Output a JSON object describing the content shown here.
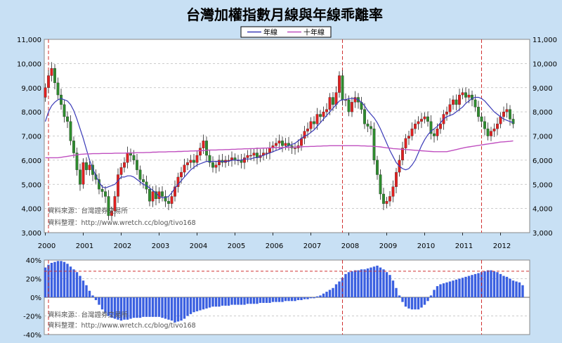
{
  "chart_data": [
    {
      "type": "candlestick",
      "title": "台灣加權指數月線與年線乖離率",
      "legend": [
        {
          "name": "年線",
          "color": "#3a3ab8"
        },
        {
          "name": "十年線",
          "color": "#c050c0"
        }
      ],
      "ylim": [
        3000,
        11000
      ],
      "yticks": [
        "3,000",
        "4,000",
        "5,000",
        "6,000",
        "7,000",
        "8,000",
        "9,000",
        "10,000",
        "11,000"
      ],
      "xticks": [
        "2000",
        "2001",
        "2002",
        "2003",
        "2004",
        "2005",
        "2006",
        "2007",
        "2008",
        "2009",
        "2010",
        "2011",
        "2012"
      ],
      "notes": [
        "資料來源：台灣證券交易所",
        "資料整理：http://www.wretch.cc/blog/tivo168"
      ],
      "monthly_close": [
        9000,
        9500,
        9800,
        9200,
        8700,
        8300,
        7800,
        7600,
        6800,
        6300,
        5600,
        5000,
        5900,
        5600,
        5800,
        5400,
        5200,
        4800,
        4700,
        4500,
        3700,
        3900,
        4500,
        5400,
        5700,
        5900,
        6300,
        6200,
        6000,
        5600,
        5200,
        5100,
        4800,
        4300,
        4700,
        4400,
        4700,
        4500,
        4300,
        4200,
        4500,
        4900,
        5300,
        5500,
        5800,
        5900,
        6000,
        5900,
        6200,
        6500,
        6800,
        6200,
        5900,
        5700,
        5800,
        6000,
        5900,
        6000,
        6000,
        6100,
        6000,
        6000,
        5900,
        6100,
        6200,
        6200,
        6300,
        6100,
        6200,
        6300,
        6300,
        6500,
        6600,
        6700,
        6800,
        6600,
        6700,
        6600,
        6500,
        6500,
        6600,
        6900,
        7200,
        7300,
        7600,
        7500,
        7900,
        7800,
        8000,
        8100,
        8600,
        8300,
        8800,
        9500,
        8500,
        8500,
        8000,
        8400,
        8600,
        8400,
        8100,
        7500,
        7400,
        7300,
        6000,
        5400,
        4600,
        4200,
        4300,
        4500,
        4900,
        5500,
        6000,
        6500,
        6900,
        7000,
        7300,
        7500,
        7600,
        7700,
        7800,
        7600,
        7100,
        7000,
        7300,
        7500,
        7900,
        8000,
        8300,
        8500,
        8300,
        8700,
        8800,
        8600,
        8700,
        8500,
        8200,
        7800,
        7600,
        7300,
        7000,
        7200,
        7300,
        7500,
        7800,
        8000,
        8100,
        7700,
        7500
      ],
      "ma12": [
        7600,
        8000,
        8250,
        8400,
        8500,
        8550,
        8500,
        8450,
        8300,
        8050,
        7700,
        7300,
        6900,
        6450,
        6000,
        5650,
        5350,
        5100,
        4900,
        4850,
        4900,
        4950,
        5000,
        5150,
        5300,
        5300,
        5350,
        5350,
        5300,
        5200,
        5100,
        5000,
        4950,
        4850,
        4750,
        4650,
        4500,
        4450,
        4450,
        4500,
        4650,
        4850,
        5000,
        5150,
        5300,
        5450,
        5600,
        5700,
        5800,
        5850,
        5900,
        5950,
        5950,
        5950,
        5950,
        5950,
        5950,
        5950,
        5950,
        6000,
        6000,
        6000,
        6000,
        6050,
        6050,
        6050,
        6100,
        6100,
        6150,
        6200,
        6250,
        6300,
        6350,
        6400,
        6450,
        6500,
        6550,
        6600,
        6650,
        6700,
        6800,
        6900,
        7000,
        7050,
        7150,
        7250,
        7400,
        7550,
        7700,
        7850,
        8000,
        8150,
        8300,
        8450,
        8500,
        8500,
        8550,
        8550,
        8550,
        8500,
        8400,
        8250,
        8050,
        7900,
        7750,
        7550,
        7300,
        7000,
        6700,
        6400,
        6150,
        5900,
        5750,
        5650,
        5600,
        5650,
        5800,
        6000,
        6300,
        6600,
        6850,
        7050,
        7200,
        7300,
        7400,
        7550,
        7700,
        7800,
        7850,
        7900,
        8000,
        8100,
        8200,
        8350,
        8450,
        8550,
        8600,
        8600,
        8550,
        8450,
        8300,
        8150,
        8000,
        7900,
        7800,
        7700,
        7650,
        7600,
        7550
      ],
      "ma120": [
        6100,
        6100,
        6100,
        6100,
        6100,
        6120,
        6140,
        6160,
        6180,
        6200,
        6220,
        6240,
        6250,
        6260,
        6260,
        6270,
        6270,
        6270,
        6280,
        6280,
        6280,
        6280,
        6290,
        6290,
        6290,
        6290,
        6300,
        6300,
        6300,
        6310,
        6310,
        6310,
        6320,
        6320,
        6330,
        6330,
        6340,
        6340,
        6340,
        6350,
        6350,
        6350,
        6360,
        6360,
        6370,
        6370,
        6380,
        6380,
        6390,
        6390,
        6400,
        6410,
        6420,
        6420,
        6420,
        6430,
        6430,
        6440,
        6440,
        6450,
        6450,
        6460,
        6460,
        6470,
        6470,
        6480,
        6480,
        6490,
        6490,
        6500,
        6500,
        6510,
        6510,
        6520,
        6520,
        6520,
        6530,
        6530,
        6540,
        6540,
        6550,
        6550,
        6560,
        6560,
        6570,
        6570,
        6580,
        6580,
        6590,
        6590,
        6600,
        6600,
        6600,
        6600,
        6600,
        6600,
        6600,
        6600,
        6600,
        6600,
        6590,
        6590,
        6580,
        6580,
        6570,
        6560,
        6550,
        6530,
        6510,
        6500,
        6480,
        6470,
        6460,
        6450,
        6440,
        6430,
        6420,
        6410,
        6400,
        6390,
        6380,
        6370,
        6360,
        6350,
        6350,
        6350,
        6350,
        6350,
        6380,
        6410,
        6440,
        6470,
        6500,
        6530,
        6550,
        6570,
        6590,
        6610,
        6630,
        6650,
        6670,
        6690,
        6710,
        6730,
        6750,
        6760,
        6770,
        6780,
        6800
      ]
    },
    {
      "type": "bar",
      "series_name": "",
      "ylim": [
        -40,
        40
      ],
      "yticks": [
        "40%",
        "20%",
        "0%",
        "-20%",
        "-40%"
      ],
      "reference_line": 28,
      "notes": [
        "資料來源：台灣證券交易所",
        "資料整理：http://www.wretch.cc/blog/tivo168"
      ],
      "values": [
        32,
        35,
        37,
        38,
        39,
        39,
        38,
        36,
        33,
        30,
        27,
        23,
        18,
        13,
        7,
        2,
        -3,
        -8,
        -13,
        -17,
        -20,
        -22,
        -23,
        -24,
        -25,
        -24,
        -24,
        -23,
        -22,
        -22,
        -22,
        -21,
        -21,
        -21,
        -21,
        -21,
        -21,
        -22,
        -23,
        -24,
        -25,
        -27,
        -26,
        -25,
        -23,
        -20,
        -18,
        -16,
        -15,
        -14,
        -13,
        -12,
        -11,
        -10,
        -10,
        -10,
        -9,
        -9,
        -9,
        -8,
        -8,
        -8,
        -8,
        -8,
        -7,
        -7,
        -7,
        -7,
        -6,
        -6,
        -6,
        -6,
        -5,
        -5,
        -5,
        -5,
        -4,
        -4,
        -4,
        -4,
        -3,
        -3,
        -2,
        -2,
        -1,
        -1,
        1,
        2,
        4,
        6,
        8,
        10,
        14,
        17,
        21,
        25,
        27,
        28,
        29,
        29,
        30,
        30,
        31,
        32,
        33,
        34,
        32,
        30,
        27,
        24,
        18,
        10,
        2,
        -5,
        -10,
        -12,
        -13,
        -13,
        -13,
        -11,
        -8,
        -4,
        2,
        8,
        12,
        14,
        15,
        16,
        17,
        18,
        19,
        20,
        21,
        22,
        23,
        24,
        25,
        26,
        27,
        28,
        29,
        29,
        28,
        27,
        25,
        23,
        22,
        20,
        18,
        17,
        16,
        13
      ]
    }
  ]
}
